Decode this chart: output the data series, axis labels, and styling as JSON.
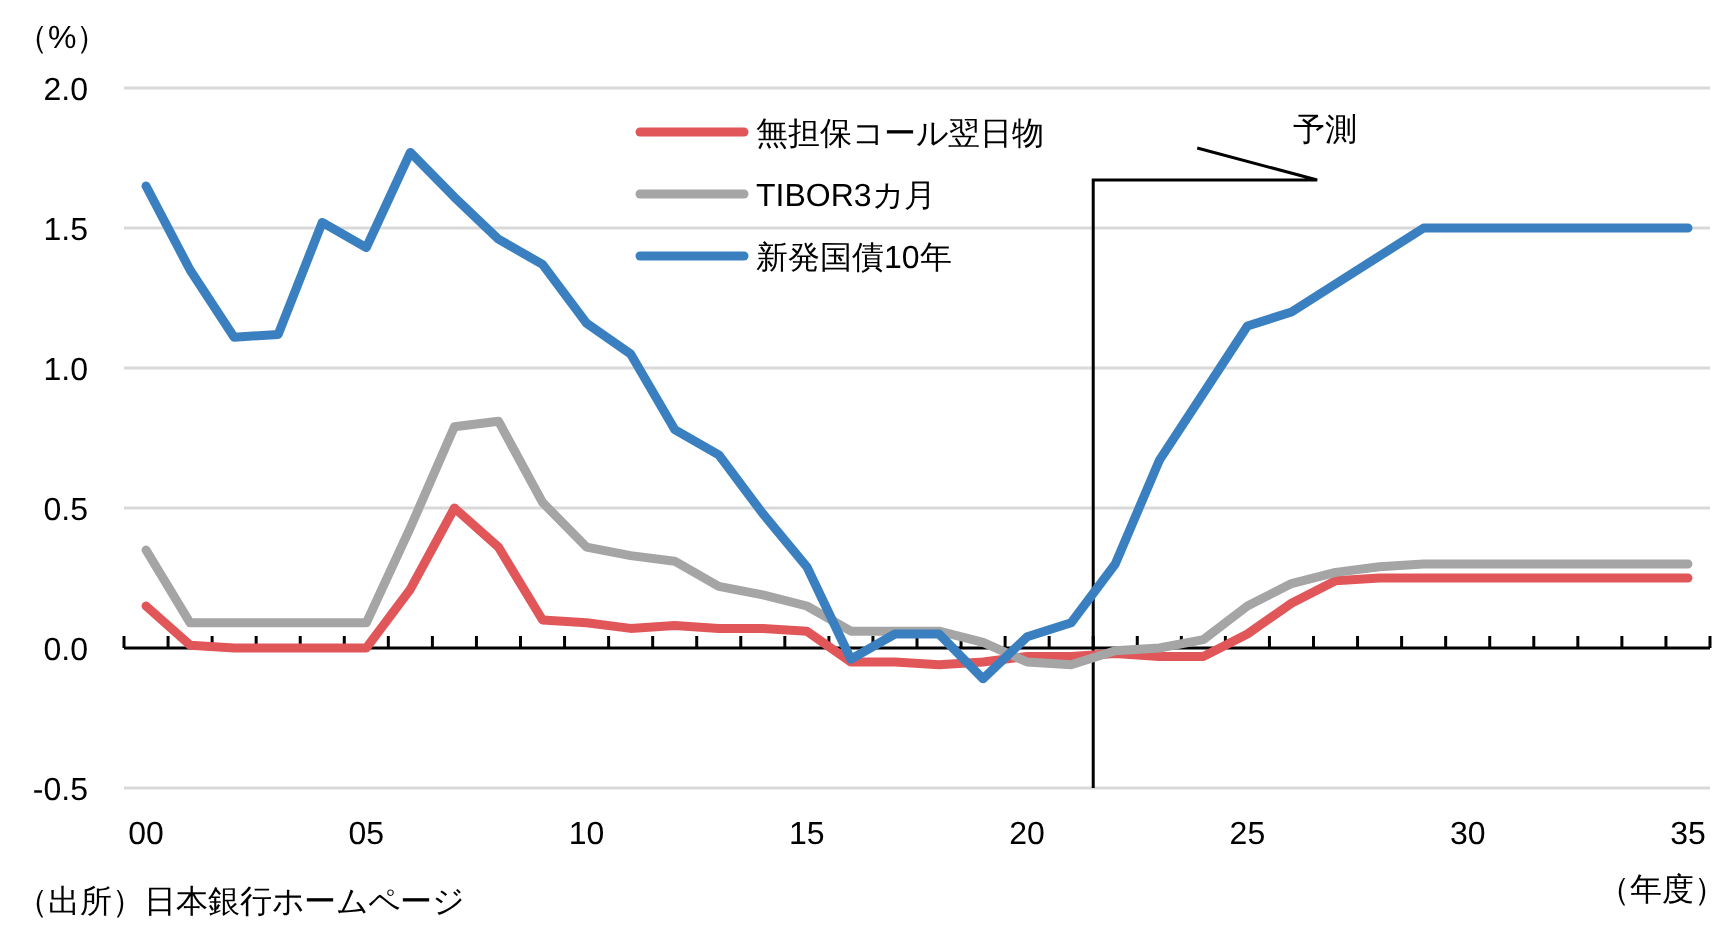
{
  "chart_data": {
    "type": "line",
    "ylabel": "（%）",
    "xlabel": "（年度）",
    "annotations": [
      "（出所）日本銀行ホームページ"
    ],
    "x": [
      0,
      1,
      2,
      3,
      4,
      5,
      6,
      7,
      8,
      9,
      10,
      11,
      12,
      13,
      14,
      15,
      16,
      17,
      18,
      19,
      20,
      21,
      22,
      23,
      24,
      25,
      26,
      27,
      28,
      29,
      30,
      31,
      32,
      33,
      34,
      35
    ],
    "series": [
      {
        "name": "無担保コール翌日物",
        "color": "#e15759",
        "values": [
          0.15,
          0.01,
          0.0,
          0.0,
          0.0,
          0.0,
          0.21,
          0.5,
          0.36,
          0.1,
          0.09,
          0.07,
          0.08,
          0.07,
          0.07,
          0.06,
          -0.05,
          -0.05,
          -0.06,
          -0.05,
          -0.03,
          -0.03,
          -0.02,
          -0.03,
          -0.03,
          0.05,
          0.16,
          0.24,
          0.25,
          0.25,
          0.25,
          0.25,
          0.25,
          0.25,
          0.25,
          0.25
        ]
      },
      {
        "name": "TIBOR3カ月",
        "color": "#a5a5a5",
        "values": [
          0.35,
          0.09,
          0.09,
          0.09,
          0.09,
          0.09,
          0.43,
          0.79,
          0.81,
          0.52,
          0.36,
          0.33,
          0.31,
          0.22,
          0.19,
          0.15,
          0.06,
          0.06,
          0.06,
          0.02,
          -0.05,
          -0.06,
          -0.01,
          0.0,
          0.03,
          0.15,
          0.23,
          0.27,
          0.29,
          0.3,
          0.3,
          0.3,
          0.3,
          0.3,
          0.3,
          0.3
        ]
      },
      {
        "name": "新発国債10年",
        "color": "#3a80c1",
        "values": [
          1.65,
          1.35,
          1.11,
          1.12,
          1.52,
          1.43,
          1.77,
          1.61,
          1.46,
          1.37,
          1.16,
          1.05,
          0.78,
          0.69,
          0.48,
          0.29,
          -0.04,
          0.05,
          0.05,
          -0.11,
          0.04,
          0.09,
          0.3,
          0.67,
          0.91,
          1.15,
          1.2,
          1.3,
          1.4,
          1.5,
          1.5,
          1.5,
          1.5,
          1.5,
          1.5,
          1.5
        ]
      }
    ],
    "xlim": [
      -0.5,
      35.5
    ],
    "xticks": [
      {
        "value": 0,
        "label": "00"
      },
      {
        "value": 5,
        "label": "05"
      },
      10,
      15,
      20,
      25,
      30,
      35,
      {
        "value": -0.5,
        "label": null
      },
      {
        "value": 0.5,
        "label": null
      },
      {
        "value": 1.5,
        "label": null
      },
      {
        "value": 2.5,
        "label": null
      },
      {
        "value": 3.5,
        "label": null
      },
      {
        "value": 4.5,
        "label": null
      },
      {
        "value": 5.5,
        "label": null
      },
      {
        "value": 6.5,
        "label": null
      },
      {
        "value": 7.5,
        "label": null
      },
      {
        "value": 8.5,
        "label": null
      },
      {
        "value": 9.5,
        "label": null
      },
      {
        "value": 10.5,
        "label": null
      },
      {
        "value": 11.5,
        "label": null
      },
      {
        "value": 12.5,
        "label": null
      },
      {
        "value": 13.5,
        "label": null
      },
      {
        "value": 14.5,
        "label": null
      },
      {
        "value": 15.5,
        "label": null
      },
      {
        "value": 16.5,
        "label": null
      },
      {
        "value": 17.5,
        "label": null
      },
      {
        "value": 18.5,
        "label": null
      },
      {
        "value": 19.5,
        "label": null
      },
      {
        "value": 20.5,
        "label": null
      },
      {
        "value": 21.5,
        "label": null
      },
      {
        "value": 22.5,
        "label": null
      },
      {
        "value": 23.5,
        "label": null
      },
      {
        "value": 24.5,
        "label": null
      },
      {
        "value": 25.5,
        "label": null
      },
      {
        "value": 26.5,
        "label": null
      },
      {
        "value": 27.5,
        "label": null
      },
      {
        "value": 28.5,
        "label": null
      },
      {
        "value": 29.5,
        "label": null
      },
      {
        "value": 30.5,
        "label": null
      },
      {
        "value": 31.5,
        "label": null
      },
      {
        "value": 32.5,
        "label": null
      },
      {
        "value": 33.5,
        "label": null
      },
      {
        "value": 34.5,
        "label": null
      },
      {
        "value": 35.5,
        "label": null
      }
    ],
    "ylim": [
      -0.5,
      2.0
    ],
    "yticks": [
      {
        "value": -0.5,
        "label": "-0.5"
      },
      {
        "value": 0,
        "label": "0.0"
      },
      {
        "value": 0.5,
        "label": "0.5"
      },
      {
        "value": 1,
        "label": "1.0"
      },
      {
        "value": 1.5,
        "label": "1.5"
      },
      {
        "value": 2,
        "label": "2.0"
      }
    ],
    "grid": "y",
    "legend": "top",
    "line_style": "solid",
    "ref_lines": [
      {
        "axis": "x",
        "value": 21.5,
        "label": "予測"
      }
    ]
  }
}
